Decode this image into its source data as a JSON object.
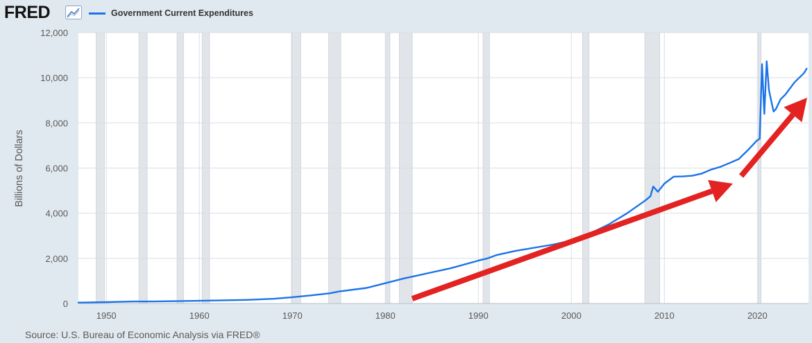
{
  "header": {
    "logo_text": "FRED",
    "logo_icon": "line-chart-icon"
  },
  "source_text": "Source: U.S. Bureau of Economic Analysis via FRED®",
  "colors": {
    "background": "#e1e9f0",
    "plot_background": "#ffffff",
    "series_line": "#1a73e8",
    "recession_band": "#e1e5ea",
    "arrow": "#e32222",
    "grid": "#d9dee3"
  },
  "chart_data": {
    "type": "line",
    "title": "",
    "xlabel": "",
    "ylabel": "Billions of Dollars",
    "xlim": [
      1947,
      2025.5
    ],
    "ylim": [
      0,
      12000
    ],
    "grid": true,
    "legend_position": "top-left",
    "x_ticks": [
      1950,
      1960,
      1970,
      1980,
      1990,
      2000,
      2010,
      2020
    ],
    "y_ticks": [
      0,
      2000,
      4000,
      6000,
      8000,
      10000,
      12000
    ],
    "y_tick_labels": [
      "0",
      "2,000",
      "4,000",
      "6,000",
      "8,000",
      "10,000",
      "12,000"
    ],
    "recessions": [
      [
        1948.9,
        1949.8
      ],
      [
        1953.5,
        1954.4
      ],
      [
        1957.6,
        1958.3
      ],
      [
        1960.3,
        1961.1
      ],
      [
        1969.9,
        1970.9
      ],
      [
        1973.9,
        1975.2
      ],
      [
        1980.0,
        1980.5
      ],
      [
        1981.5,
        1982.9
      ],
      [
        1990.5,
        1991.2
      ],
      [
        2001.2,
        2001.9
      ],
      [
        2007.9,
        2009.5
      ],
      [
        2020.1,
        2020.4
      ]
    ],
    "series": [
      {
        "name": "Government Current Expenditures",
        "x": [
          1947,
          1950,
          1953,
          1955,
          1960,
          1965,
          1968,
          1970,
          1972,
          1974,
          1975,
          1978,
          1980,
          1982,
          1983,
          1985,
          1987,
          1990,
          1991,
          1992,
          1994,
          1995,
          1998,
          2000,
          2002,
          2004,
          2006,
          2008,
          2008.5,
          2008.8,
          2009.3,
          2009.6,
          2010,
          2011,
          2012,
          2013,
          2014,
          2015,
          2016,
          2017,
          2018,
          2019,
          2019.9,
          2020.25,
          2020.5,
          2020.75,
          2021.0,
          2021.25,
          2021.5,
          2021.75,
          2022.0,
          2022.5,
          2023,
          2024,
          2025,
          2025.3
        ],
        "y": [
          40,
          60,
          90,
          90,
          120,
          160,
          210,
          280,
          360,
          450,
          530,
          690,
          900,
          1110,
          1200,
          1380,
          1560,
          1900,
          2000,
          2150,
          2330,
          2400,
          2610,
          2790,
          3100,
          3500,
          4000,
          4580,
          4750,
          5180,
          4950,
          5100,
          5310,
          5620,
          5630,
          5660,
          5750,
          5930,
          6050,
          6220,
          6400,
          6800,
          7200,
          7300,
          10600,
          8400,
          10730,
          9450,
          8950,
          8500,
          8620,
          9050,
          9250,
          9800,
          10200,
          10400
        ]
      }
    ]
  }
}
